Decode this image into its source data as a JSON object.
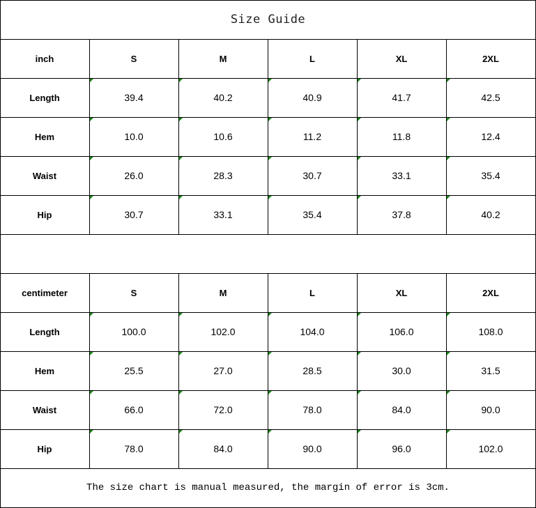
{
  "title": "Size Guide",
  "tables": [
    {
      "unit": "inch",
      "sizes": [
        "S",
        "M",
        "L",
        "XL",
        "2XL"
      ],
      "rows": [
        {
          "label": "Length",
          "values": [
            "39.4",
            "40.2",
            "40.9",
            "41.7",
            "42.5"
          ]
        },
        {
          "label": "Hem",
          "values": [
            "10.0",
            "10.6",
            "11.2",
            "11.8",
            "12.4"
          ]
        },
        {
          "label": "Waist",
          "values": [
            "26.0",
            "28.3",
            "30.7",
            "33.1",
            "35.4"
          ]
        },
        {
          "label": "Hip",
          "values": [
            "30.7",
            "33.1",
            "35.4",
            "37.8",
            "40.2"
          ]
        }
      ]
    },
    {
      "unit": "centimeter",
      "sizes": [
        "S",
        "M",
        "L",
        "XL",
        "2XL"
      ],
      "rows": [
        {
          "label": "Length",
          "values": [
            "100.0",
            "102.0",
            "104.0",
            "106.0",
            "108.0"
          ]
        },
        {
          "label": "Hem",
          "values": [
            "25.5",
            "27.0",
            "28.5",
            "30.0",
            "31.5"
          ]
        },
        {
          "label": "Waist",
          "values": [
            "66.0",
            "72.0",
            "78.0",
            "84.0",
            "90.0"
          ]
        },
        {
          "label": "Hip",
          "values": [
            "78.0",
            "84.0",
            "90.0",
            "96.0",
            "102.0"
          ]
        }
      ]
    }
  ],
  "note": "The size chart is manual measured, the margin of error is 3cm.",
  "colors": {
    "cell_marker": "#1a8a1a",
    "border": "#000000"
  }
}
